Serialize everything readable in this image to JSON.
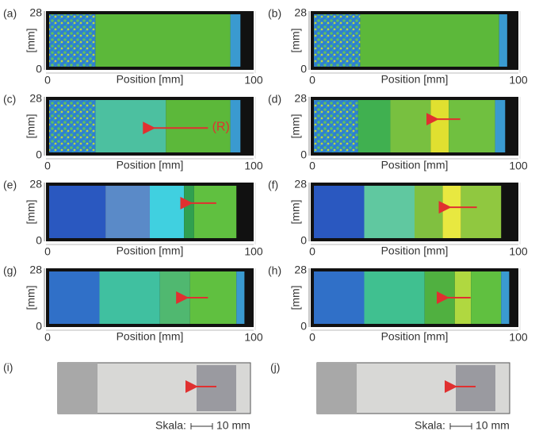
{
  "panels": [
    {
      "label": "(a)",
      "y_ticks": [
        28,
        0
      ],
      "y_axis_label": "[mm]",
      "x_ticks": [
        0,
        100
      ],
      "x_axis_label": "Position [mm]"
    },
    {
      "label": "(b)",
      "y_ticks": [
        28,
        0
      ],
      "y_axis_label": "[mm]",
      "x_ticks": [
        0,
        100
      ],
      "x_axis_label": "Position [mm]"
    },
    {
      "label": "(c)",
      "y_ticks": [
        28,
        0
      ],
      "y_axis_label": "[mm]",
      "x_ticks": [
        0,
        100
      ],
      "x_axis_label": "Position [mm]",
      "annotation": "(R)"
    },
    {
      "label": "(d)",
      "y_ticks": [
        28,
        0
      ],
      "y_axis_label": "[mm]",
      "x_ticks": [
        0,
        100
      ],
      "x_axis_label": "Position [mm]"
    },
    {
      "label": "(e)",
      "y_ticks": [
        28,
        0
      ],
      "y_axis_label": "[mm]",
      "x_ticks": [
        0,
        100
      ],
      "x_axis_label": "Position [mm]"
    },
    {
      "label": "(f)",
      "y_ticks": [
        28,
        0
      ],
      "y_axis_label": "[mm]",
      "x_ticks": [
        0,
        100
      ],
      "x_axis_label": "Position [mm]"
    },
    {
      "label": "(g)",
      "y_ticks": [
        28,
        0
      ],
      "y_axis_label": "[mm]",
      "x_ticks": [
        0,
        100
      ],
      "x_axis_label": "Position [mm]"
    },
    {
      "label": "(h)",
      "y_ticks": [
        28,
        0
      ],
      "y_axis_label": "[mm]",
      "x_ticks": [
        0,
        100
      ],
      "x_axis_label": "Position [mm]"
    }
  ],
  "photos": [
    {
      "label": "(i)",
      "scale_label": "Skala:",
      "scale_text": "10 mm"
    },
    {
      "label": "(j)",
      "scale_label": "Skala:",
      "scale_text": "10 mm"
    }
  ]
}
